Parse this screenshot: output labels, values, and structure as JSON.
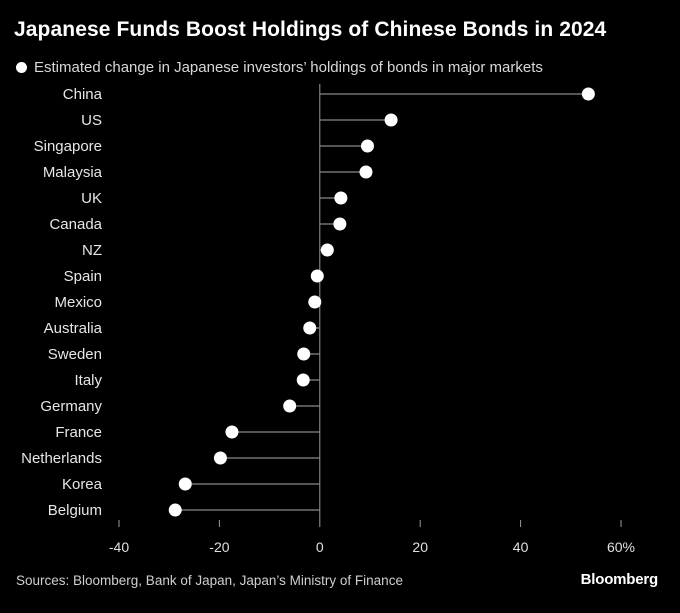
{
  "title": "Japanese Funds Boost Holdings of Chinese Bonds in 2024",
  "legend_label": "Estimated change in Japanese investors’ holdings of bonds in major markets",
  "source": "Sources: Bloomberg, Bank of Japan, Japan’s Ministry of Finance",
  "brand": "Bloomberg",
  "colors": {
    "background": "#000000",
    "marker": "#ffffff",
    "stem": "#888888",
    "axis": "#9a9a9a"
  },
  "chart_data": {
    "type": "scatter",
    "title": "Japanese Funds Boost Holdings of Chinese Bonds in 2024",
    "xlabel": "",
    "ylabel": "",
    "xlim": [
      -40,
      60
    ],
    "x_ticks": [
      -40,
      -20,
      0,
      20,
      40,
      60
    ],
    "x_tick_labels": [
      "-40",
      "-20",
      "0",
      "20",
      "40",
      "60%"
    ],
    "grid": false,
    "legend_position": "top-left",
    "categories": [
      "China",
      "US",
      "Singapore",
      "Malaysia",
      "UK",
      "Canada",
      "NZ",
      "Spain",
      "Mexico",
      "Australia",
      "Sweden",
      "Italy",
      "Germany",
      "France",
      "Netherlands",
      "Korea",
      "Belgium"
    ],
    "series": [
      {
        "name": "Estimated change in Japanese investors’ holdings of bonds in major markets",
        "values": [
          53.5,
          14.2,
          9.5,
          9.2,
          4.2,
          4.0,
          1.5,
          -0.5,
          -1.0,
          -2.0,
          -3.2,
          -3.3,
          -6.0,
          -17.5,
          -19.8,
          -26.8,
          -28.8
        ]
      }
    ]
  }
}
